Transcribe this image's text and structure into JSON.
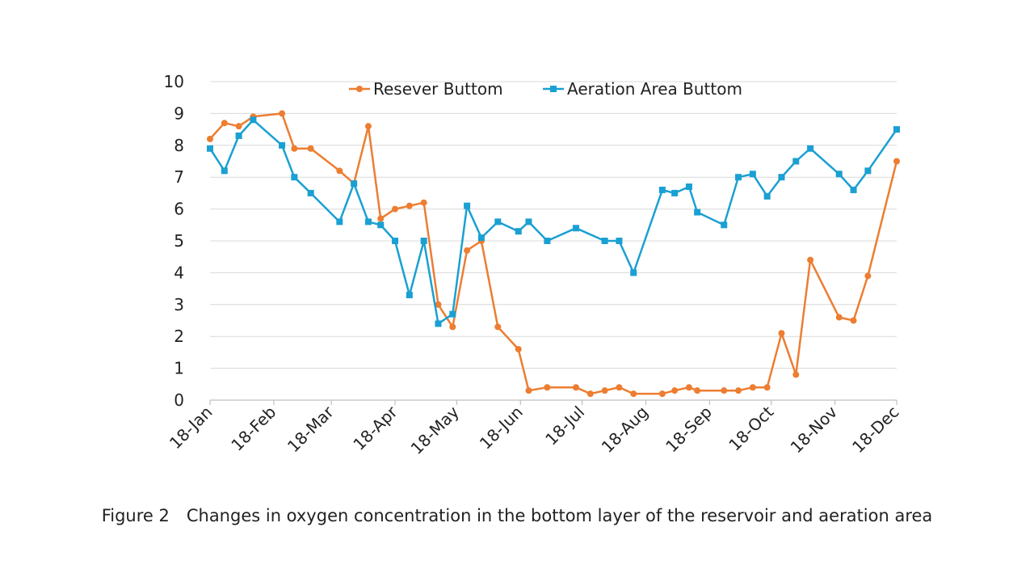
{
  "caption": "Figure 2　Changes in oxygen concentration in the bottom layer of the reservoir and aeration area",
  "chart_data": {
    "type": "line",
    "title": "",
    "xlabel": "",
    "ylabel": "",
    "ylim": [
      0,
      10
    ],
    "yticks": [
      "0",
      "1",
      "2",
      "3",
      "4",
      "5",
      "6",
      "7",
      "8",
      "9",
      "10"
    ],
    "x_range_days": [
      0,
      334
    ],
    "x_tick_labels": [
      {
        "label": "18-Jan",
        "day": 0
      },
      {
        "label": "18-Feb",
        "day": 31
      },
      {
        "label": "18-Mar",
        "day": 59
      },
      {
        "label": "18-Apr",
        "day": 90
      },
      {
        "label": "18-May",
        "day": 120
      },
      {
        "label": "18-Jun",
        "day": 151
      },
      {
        "label": "18-Jul",
        "day": 181
      },
      {
        "label": "18-Aug",
        "day": 212
      },
      {
        "label": "18-Sep",
        "day": 243
      },
      {
        "label": "18-Oct",
        "day": 273
      },
      {
        "label": "18-Nov",
        "day": 304
      },
      {
        "label": "18-Dec",
        "day": 334
      }
    ],
    "legend_position": "top-center",
    "series": [
      {
        "name": "Resever Buttom",
        "color": "#ED7D31",
        "marker": "circle",
        "points": [
          [
            0,
            8.2
          ],
          [
            7,
            8.7
          ],
          [
            14,
            8.6
          ],
          [
            21,
            8.9
          ],
          [
            35,
            9.0
          ],
          [
            41,
            7.9
          ],
          [
            49,
            7.9
          ],
          [
            63,
            7.2
          ],
          [
            70,
            6.8
          ],
          [
            77,
            8.6
          ],
          [
            83,
            5.7
          ],
          [
            90,
            6.0
          ],
          [
            97,
            6.1
          ],
          [
            104,
            6.2
          ],
          [
            111,
            3.0
          ],
          [
            118,
            2.3
          ],
          [
            125,
            4.7
          ],
          [
            132,
            5.0
          ],
          [
            140,
            2.3
          ],
          [
            150,
            1.6
          ],
          [
            155,
            0.3
          ],
          [
            164,
            0.4
          ],
          [
            178,
            0.4
          ],
          [
            185,
            0.2
          ],
          [
            192,
            0.3
          ],
          [
            199,
            0.4
          ],
          [
            206,
            0.2
          ],
          [
            220,
            0.2
          ],
          [
            226,
            0.3
          ],
          [
            233,
            0.4
          ],
          [
            237,
            0.3
          ],
          [
            250,
            0.3
          ],
          [
            257,
            0.3
          ],
          [
            264,
            0.4
          ],
          [
            271,
            0.4
          ],
          [
            278,
            2.1
          ],
          [
            285,
            0.8
          ],
          [
            292,
            4.4
          ],
          [
            306,
            2.6
          ],
          [
            313,
            2.5
          ],
          [
            320,
            3.9
          ],
          [
            334,
            7.5
          ]
        ]
      },
      {
        "name": "Aeration Area Buttom",
        "color": "#1AA0D2",
        "marker": "square",
        "points": [
          [
            0,
            7.9
          ],
          [
            7,
            7.2
          ],
          [
            14,
            8.3
          ],
          [
            21,
            8.8
          ],
          [
            35,
            8.0
          ],
          [
            41,
            7.0
          ],
          [
            49,
            6.5
          ],
          [
            63,
            5.6
          ],
          [
            70,
            6.8
          ],
          [
            77,
            5.6
          ],
          [
            83,
            5.5
          ],
          [
            90,
            5.0
          ],
          [
            97,
            3.3
          ],
          [
            104,
            5.0
          ],
          [
            111,
            2.4
          ],
          [
            118,
            2.7
          ],
          [
            125,
            6.1
          ],
          [
            132,
            5.1
          ],
          [
            140,
            5.6
          ],
          [
            150,
            5.3
          ],
          [
            155,
            5.6
          ],
          [
            164,
            5.0
          ],
          [
            178,
            5.4
          ],
          [
            192,
            5.0
          ],
          [
            199,
            5.0
          ],
          [
            206,
            4.0
          ],
          [
            220,
            6.6
          ],
          [
            226,
            6.5
          ],
          [
            233,
            6.7
          ],
          [
            237,
            5.9
          ],
          [
            250,
            5.5
          ],
          [
            257,
            7.0
          ],
          [
            264,
            7.1
          ],
          [
            271,
            6.4
          ],
          [
            278,
            7.0
          ],
          [
            285,
            7.5
          ],
          [
            292,
            7.9
          ],
          [
            306,
            7.1
          ],
          [
            313,
            6.6
          ],
          [
            320,
            7.2
          ],
          [
            334,
            8.5
          ]
        ]
      }
    ]
  }
}
